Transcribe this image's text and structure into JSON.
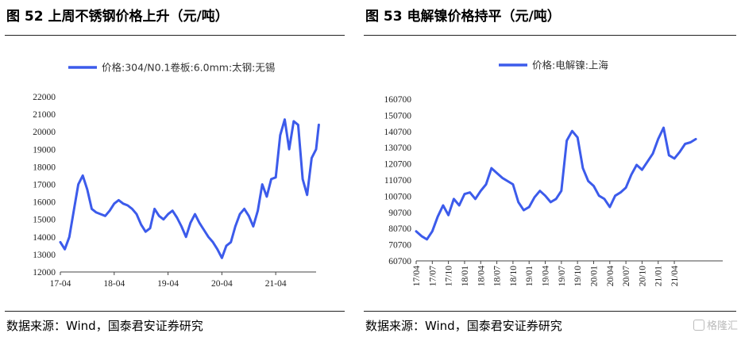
{
  "panels": [
    {
      "title": "图 52  上周不锈钢价格上升（元/吨）",
      "source": "数据来源：Wind，国泰君安证券研究"
    },
    {
      "title": "图 53  电解镍价格持平（元/吨）",
      "source": "数据来源：Wind，国泰君安证券研究"
    }
  ],
  "watermark": "格隆汇",
  "colors": {
    "line": "#3C5BEB"
  },
  "chart_data": [
    {
      "type": "line",
      "legend": "价格:304/N0.1卷板:6.0mm:太钢:无锡",
      "ylim": [
        12000,
        22000
      ],
      "yticks": [
        "22000",
        "21000",
        "20000",
        "19000",
        "18000",
        "17000",
        "16000",
        "15000",
        "14000",
        "13000",
        "12000"
      ],
      "xtick_labels": [
        "17-04",
        "18-04",
        "19-04",
        "20-04",
        "21-04"
      ],
      "x_range": [
        "2017-04",
        "2021-12"
      ],
      "series": [
        {
          "name": "价格:304/N0.1卷板:6.0mm:太钢:无锡",
          "points": [
            [
              "2017-04",
              13700
            ],
            [
              "2017-05",
              13300
            ],
            [
              "2017-06",
              14000
            ],
            [
              "2017-07",
              15500
            ],
            [
              "2017-08",
              17000
            ],
            [
              "2017-09",
              17500
            ],
            [
              "2017-10",
              16700
            ],
            [
              "2017-11",
              15600
            ],
            [
              "2017-12",
              15400
            ],
            [
              "2018-01",
              15300
            ],
            [
              "2018-02",
              15200
            ],
            [
              "2018-03",
              15500
            ],
            [
              "2018-04",
              15900
            ],
            [
              "2018-05",
              16100
            ],
            [
              "2018-06",
              15900
            ],
            [
              "2018-07",
              15800
            ],
            [
              "2018-08",
              15600
            ],
            [
              "2018-09",
              15300
            ],
            [
              "2018-10",
              14700
            ],
            [
              "2018-11",
              14300
            ],
            [
              "2018-12",
              14500
            ],
            [
              "2019-01",
              15600
            ],
            [
              "2019-02",
              15200
            ],
            [
              "2019-03",
              15000
            ],
            [
              "2019-04",
              15300
            ],
            [
              "2019-05",
              15500
            ],
            [
              "2019-06",
              15100
            ],
            [
              "2019-07",
              14600
            ],
            [
              "2019-08",
              14000
            ],
            [
              "2019-09",
              14800
            ],
            [
              "2019-10",
              15300
            ],
            [
              "2019-11",
              14800
            ],
            [
              "2019-12",
              14400
            ],
            [
              "2020-01",
              14000
            ],
            [
              "2020-02",
              13700
            ],
            [
              "2020-03",
              13300
            ],
            [
              "2020-04",
              12800
            ],
            [
              "2020-05",
              13500
            ],
            [
              "2020-06",
              13700
            ],
            [
              "2020-07",
              14600
            ],
            [
              "2020-08",
              15300
            ],
            [
              "2020-09",
              15600
            ],
            [
              "2020-10",
              15200
            ],
            [
              "2020-11",
              14600
            ],
            [
              "2020-12",
              15500
            ],
            [
              "2021-01",
              17000
            ],
            [
              "2021-02",
              16300
            ],
            [
              "2021-03",
              17300
            ],
            [
              "2021-04",
              17400
            ],
            [
              "2021-05",
              19800
            ],
            [
              "2021-06",
              20700
            ],
            [
              "2021-07",
              19000
            ],
            [
              "2021-08",
              20600
            ],
            [
              "2021-09",
              20400
            ],
            [
              "2021-10",
              17300
            ],
            [
              "2021-11",
              16400
            ],
            [
              "2021-12",
              18500
            ],
            [
              "2022-01",
              19000
            ],
            [
              "2022-01",
              20400
            ]
          ]
        }
      ]
    },
    {
      "type": "line",
      "legend": "价格:电解镍:上海",
      "ylim": [
        60700,
        160700
      ],
      "yticks": [
        "160700",
        "150700",
        "140700",
        "130700",
        "120700",
        "110700",
        "100700",
        "90700",
        "80700",
        "70700",
        "60700"
      ],
      "xtick_labels": [
        "17/04",
        "17/07",
        "17/10",
        "18/01",
        "18/04",
        "18/07",
        "18/10",
        "19/01",
        "19/04",
        "19/07",
        "19/10",
        "20/01",
        "20/04",
        "20/07",
        "20/10",
        "21/01",
        "21/04"
      ],
      "x_range": [
        "2017-04",
        "2021-12"
      ],
      "series": [
        {
          "name": "价格:电解镍:上海",
          "points": [
            [
              "2017-04",
              79000
            ],
            [
              "2017-05",
              76000
            ],
            [
              "2017-06",
              74000
            ],
            [
              "2017-07",
              79000
            ],
            [
              "2017-08",
              88000
            ],
            [
              "2017-09",
              95000
            ],
            [
              "2017-10",
              89000
            ],
            [
              "2017-11",
              99000
            ],
            [
              "2017-12",
              95000
            ],
            [
              "2018-01",
              102000
            ],
            [
              "2018-02",
              103000
            ],
            [
              "2018-03",
              99000
            ],
            [
              "2018-04",
              104000
            ],
            [
              "2018-05",
              108000
            ],
            [
              "2018-06",
              118000
            ],
            [
              "2018-07",
              115000
            ],
            [
              "2018-08",
              112000
            ],
            [
              "2018-09",
              110000
            ],
            [
              "2018-10",
              108000
            ],
            [
              "2018-11",
              97000
            ],
            [
              "2018-12",
              92000
            ],
            [
              "2019-01",
              94000
            ],
            [
              "2019-02",
              100000
            ],
            [
              "2019-03",
              104000
            ],
            [
              "2019-04",
              101000
            ],
            [
              "2019-05",
              97000
            ],
            [
              "2019-06",
              99000
            ],
            [
              "2019-07",
              104000
            ],
            [
              "2019-08",
              135000
            ],
            [
              "2019-09",
              141000
            ],
            [
              "2019-10",
              137000
            ],
            [
              "2019-11",
              118000
            ],
            [
              "2019-12",
              110000
            ],
            [
              "2020-01",
              107000
            ],
            [
              "2020-02",
              101000
            ],
            [
              "2020-03",
              99000
            ],
            [
              "2020-04",
              94000
            ],
            [
              "2020-05",
              101000
            ],
            [
              "2020-06",
              103000
            ],
            [
              "2020-07",
              106000
            ],
            [
              "2020-08",
              114000
            ],
            [
              "2020-09",
              120000
            ],
            [
              "2020-10",
              117000
            ],
            [
              "2020-11",
              122000
            ],
            [
              "2020-12",
              127000
            ],
            [
              "2021-01",
              136000
            ],
            [
              "2021-02",
              143000
            ],
            [
              "2021-03",
              126000
            ],
            [
              "2021-04",
              124000
            ],
            [
              "2021-05",
              128000
            ],
            [
              "2021-06",
              133000
            ],
            [
              "2021-07",
              134000
            ],
            [
              "2021-08",
              136000
            ]
          ]
        }
      ]
    }
  ]
}
